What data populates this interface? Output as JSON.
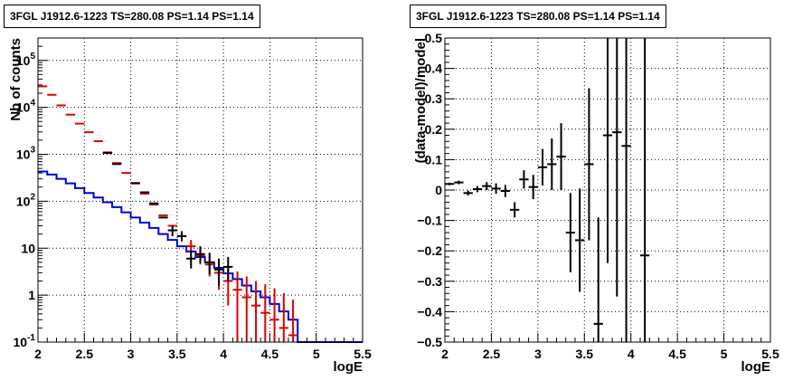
{
  "chart_data": [
    {
      "type": "step-histogram",
      "title": "3FGL J1912.6-1223 TS=280.08 PS=1.14 PS=1.14",
      "xlabel": "logE",
      "ylabel": "Nb of counts",
      "xlim": [
        2,
        5.5
      ],
      "ylim": [
        0.1,
        300000
      ],
      "ylog": true,
      "grid": true,
      "x_ticks": [
        "2",
        "2.5",
        "3",
        "3.5",
        "4",
        "4.5",
        "5",
        "5.5"
      ],
      "y_ticks": [
        "10^{-1}",
        "1",
        "10",
        "10^{2}",
        "10^{3}",
        "10^{4}",
        "10^{5}"
      ],
      "bin_edges": [
        2.0,
        2.1,
        2.2,
        2.3,
        2.4,
        2.5,
        2.6,
        2.7,
        2.8,
        2.9,
        3.0,
        3.1,
        3.2,
        3.3,
        3.4,
        3.5,
        3.6,
        3.7,
        3.8,
        3.9,
        4.0,
        4.1,
        4.2,
        4.3,
        4.4,
        4.5,
        4.6,
        4.7,
        4.8,
        4.9,
        5.0,
        5.1,
        5.2,
        5.3,
        5.4,
        5.5
      ],
      "series": [
        {
          "color": "#0000dd",
          "style": "step",
          "values": [
            430,
            370,
            300,
            240,
            190,
            150,
            120,
            95,
            75,
            58,
            45,
            35,
            27,
            20,
            15,
            11,
            8.5,
            6.5,
            5,
            3.8,
            2.9,
            2.2,
            1.6,
            1.2,
            0.9,
            0.65,
            0.45,
            0.3,
            0.1,
            0.1,
            0.1,
            0.1,
            0.1,
            0.1,
            0.1
          ]
        },
        {
          "color": "#dd0000",
          "style": "markers",
          "points": [
            {
              "x": 2.05,
              "y": 28000
            },
            {
              "x": 2.15,
              "y": 18500
            },
            {
              "x": 2.25,
              "y": 11000
            },
            {
              "x": 2.35,
              "y": 7000
            },
            {
              "x": 2.45,
              "y": 4500
            },
            {
              "x": 2.55,
              "y": 2950
            },
            {
              "x": 2.65,
              "y": 1900
            },
            {
              "x": 2.75,
              "y": 1100
            },
            {
              "x": 2.85,
              "y": 650
            },
            {
              "x": 2.95,
              "y": 400
            },
            {
              "x": 3.05,
              "y": 245
            },
            {
              "x": 3.15,
              "y": 145
            },
            {
              "x": 3.25,
              "y": 85
            },
            {
              "x": 3.35,
              "y": 50
            },
            {
              "x": 3.45,
              "y": 30
            },
            {
              "x": 3.55,
              "y": 18,
              "lo": 14,
              "hi": 23
            },
            {
              "x": 3.65,
              "y": 11,
              "lo": 8,
              "hi": 15
            },
            {
              "x": 3.75,
              "y": 7,
              "lo": 4.5,
              "hi": 10
            },
            {
              "x": 3.85,
              "y": 4.5,
              "lo": 2.5,
              "hi": 7.5
            },
            {
              "x": 3.95,
              "y": 3,
              "lo": 1.3,
              "hi": 5.5
            },
            {
              "x": 4.05,
              "y": 2,
              "lo": 0.6,
              "hi": 4.2
            },
            {
              "x": 4.15,
              "y": 1.3,
              "lo": 0.1,
              "hi": 3.2
            },
            {
              "x": 4.25,
              "y": 0.9,
              "lo": 0.1,
              "hi": 2.5
            },
            {
              "x": 4.35,
              "y": 0.6,
              "lo": 0.1,
              "hi": 2.0
            },
            {
              "x": 4.45,
              "y": 0.42,
              "lo": 0.1,
              "hi": 1.7
            },
            {
              "x": 4.55,
              "y": 0.3,
              "lo": 0.1,
              "hi": 1.4
            },
            {
              "x": 4.65,
              "y": 0.2,
              "lo": 0.1,
              "hi": 1.1
            },
            {
              "x": 4.75,
              "y": 0.14,
              "lo": 0.1,
              "hi": 0.8
            }
          ]
        },
        {
          "color": "#000000",
          "style": "markers",
          "points": [
            {
              "x": 2.75,
              "y": 1070
            },
            {
              "x": 2.85,
              "y": 620
            },
            {
              "x": 3.05,
              "y": 240
            },
            {
              "x": 3.15,
              "y": 155
            },
            {
              "x": 3.25,
              "y": 90
            },
            {
              "x": 3.35,
              "y": 45
            },
            {
              "x": 3.45,
              "y": 24,
              "lo": 18,
              "hi": 30
            },
            {
              "x": 3.55,
              "y": 18,
              "lo": 14,
              "hi": 23
            },
            {
              "x": 3.65,
              "y": 6,
              "lo": 3.7,
              "hi": 9
            },
            {
              "x": 3.75,
              "y": 7.5,
              "lo": 4.8,
              "hi": 11
            },
            {
              "x": 3.85,
              "y": 5,
              "lo": 2.8,
              "hi": 8
            },
            {
              "x": 3.95,
              "y": 3.5,
              "lo": 1.6,
              "hi": 6
            },
            {
              "x": 4.05,
              "y": 4,
              "lo": 2.0,
              "hi": 6.5
            }
          ]
        }
      ]
    },
    {
      "type": "scatter",
      "title": "3FGL J1912.6-1223 TS=280.08 PS=1.14 PS=1.14",
      "xlabel": "logE",
      "ylabel": "(data-model)/model",
      "xlim": [
        2,
        5.5
      ],
      "ylim": [
        -0.5,
        0.5
      ],
      "grid": true,
      "x_ticks": [
        "2",
        "2.5",
        "3",
        "3.5",
        "4",
        "4.5",
        "5",
        "5.5"
      ],
      "y_ticks": [
        "−0.5",
        "−0.4",
        "−0.3",
        "−0.2",
        "−0.1",
        "0",
        "0.1",
        "0.2",
        "0.3",
        "0.4",
        "0.5"
      ],
      "points": [
        {
          "x": 2.05,
          "y": 0.02,
          "err": 0.004
        },
        {
          "x": 2.15,
          "y": 0.025,
          "err": 0.006
        },
        {
          "x": 2.25,
          "y": -0.01,
          "err": 0.008
        },
        {
          "x": 2.35,
          "y": 0.003,
          "err": 0.01
        },
        {
          "x": 2.45,
          "y": 0.013,
          "err": 0.013
        },
        {
          "x": 2.55,
          "y": 0.005,
          "err": 0.017
        },
        {
          "x": 2.65,
          "y": -0.003,
          "err": 0.02
        },
        {
          "x": 2.75,
          "y": -0.065,
          "err": 0.025
        },
        {
          "x": 2.85,
          "y": 0.035,
          "err": 0.03
        },
        {
          "x": 2.95,
          "y": 0.01,
          "err": 0.04
        },
        {
          "x": 3.05,
          "y": 0.075,
          "err": 0.06
        },
        {
          "x": 3.15,
          "y": 0.085,
          "err": 0.085
        },
        {
          "x": 3.25,
          "y": 0.11,
          "err": 0.11
        },
        {
          "x": 3.35,
          "y": -0.14,
          "err": 0.13
        },
        {
          "x": 3.45,
          "y": -0.165,
          "err": 0.17
        },
        {
          "x": 3.55,
          "y": 0.085,
          "err": 0.25
        },
        {
          "x": 3.65,
          "y": -0.44,
          "err": 0.35
        },
        {
          "x": 3.75,
          "y": 0.18,
          "err": 0.42
        },
        {
          "x": 3.85,
          "y": 0.19,
          "err": 0.54
        },
        {
          "x": 3.95,
          "y": 0.145,
          "err": 0.7
        },
        {
          "x": 4.15,
          "y": -0.215,
          "err": 0.95
        }
      ]
    }
  ]
}
